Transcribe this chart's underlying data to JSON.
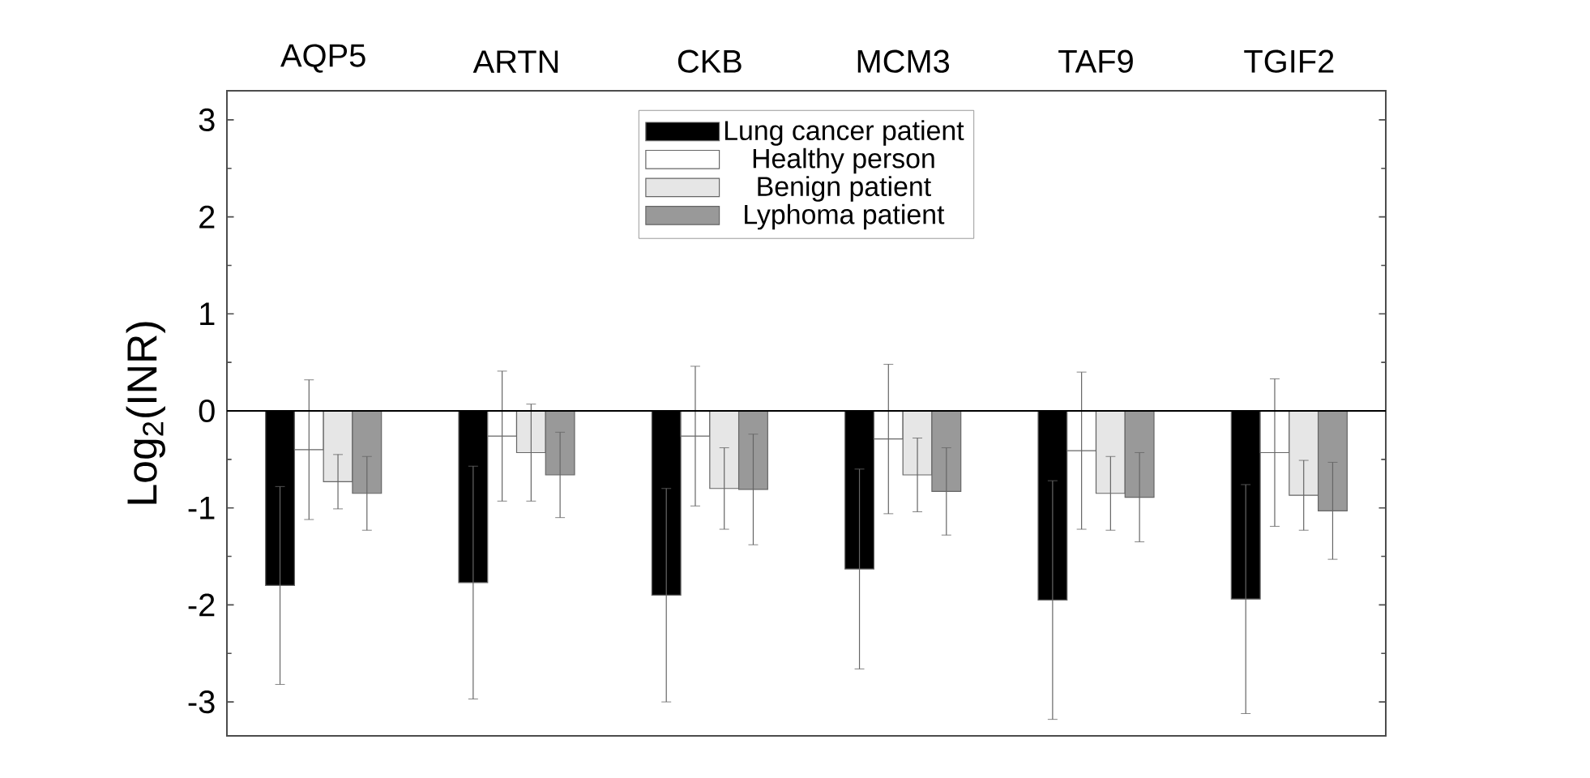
{
  "chart_data": {
    "type": "bar",
    "ylabel": "Log$_{2}$(INR)",
    "categories": [
      "AQP5",
      "ARTN",
      "CKB",
      "MCM3",
      "TAF9",
      "TGIF2"
    ],
    "series": [
      {
        "name": "Lung cancer patient",
        "color": "#000000",
        "values": [
          -1.8,
          -1.77,
          -1.9,
          -1.63,
          -1.95,
          -1.94
        ],
        "errors": [
          1.02,
          1.2,
          1.1,
          1.03,
          1.23,
          1.18
        ]
      },
      {
        "name": "Healthy person",
        "color": "#ffffff",
        "values": [
          -0.4,
          -0.26,
          -0.26,
          -0.29,
          -0.41,
          -0.43
        ],
        "errors": [
          0.72,
          0.67,
          0.72,
          0.77,
          0.81,
          0.76
        ]
      },
      {
        "name": "Benign patient",
        "color": "#e6e6e6",
        "values": [
          -0.73,
          -0.43,
          -0.8,
          -0.66,
          -0.85,
          -0.87
        ],
        "errors": [
          0.28,
          0.5,
          0.42,
          0.38,
          0.38,
          0.36
        ]
      },
      {
        "name": "Lyphoma patient",
        "color": "#999999",
        "values": [
          -0.85,
          -0.66,
          -0.81,
          -0.83,
          -0.89,
          -1.03
        ],
        "errors": [
          0.38,
          0.44,
          0.57,
          0.45,
          0.46,
          0.5
        ]
      }
    ],
    "ylim": [
      -3.35,
      3.3
    ],
    "yticks": [
      -3,
      -2,
      -1,
      0,
      1,
      2,
      3
    ],
    "ref_lines": [
      {
        "axis": "y",
        "value": 0
      }
    ],
    "legend": "top"
  }
}
